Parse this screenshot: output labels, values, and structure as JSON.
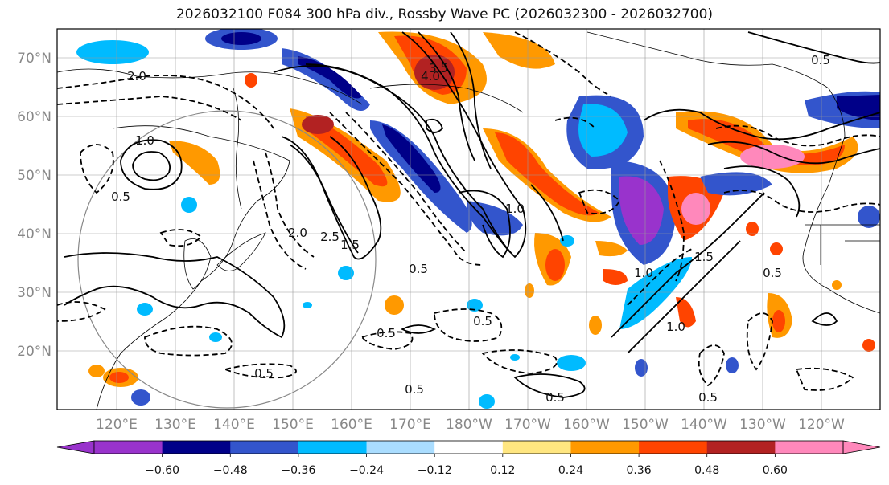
{
  "title": "2026032100 F084 300 hPa div., Rossby Wave PC (2026032300 - 2026032700)",
  "lat_labels": [
    "70°N",
    "60°N",
    "50°N",
    "40°N",
    "30°N",
    "20°N"
  ],
  "lon_labels": [
    "120°E",
    "130°E",
    "140°E",
    "150°E",
    "160°E",
    "170°E",
    "180°W",
    "170°W",
    "160°W",
    "150°W",
    "140°W",
    "130°W",
    "120°W"
  ],
  "colorbar": {
    "colors": [
      "#9933cc",
      "#000088",
      "#3355cc",
      "#00bbff",
      "#aaddff",
      "#ffffff",
      "#ffe680",
      "#ff9900",
      "#ff4400",
      "#b22222",
      "#ff88bb"
    ],
    "tick_labels": [
      "−0.60",
      "−0.48",
      "−0.36",
      "−0.24",
      "−0.12",
      "0.12",
      "0.24",
      "0.36",
      "0.48",
      "0.60"
    ]
  },
  "contour_labels": [
    "2.0",
    "0.5",
    "1.0",
    "2.5",
    "2.0",
    "1.5",
    "4.0",
    "3.5",
    "0.5",
    "1.0",
    "0.5",
    "0.5",
    "0.5",
    "0.5",
    "1.5",
    "1.0",
    "0.5",
    "0.5",
    "0.5",
    "1.0",
    "0.5"
  ]
}
